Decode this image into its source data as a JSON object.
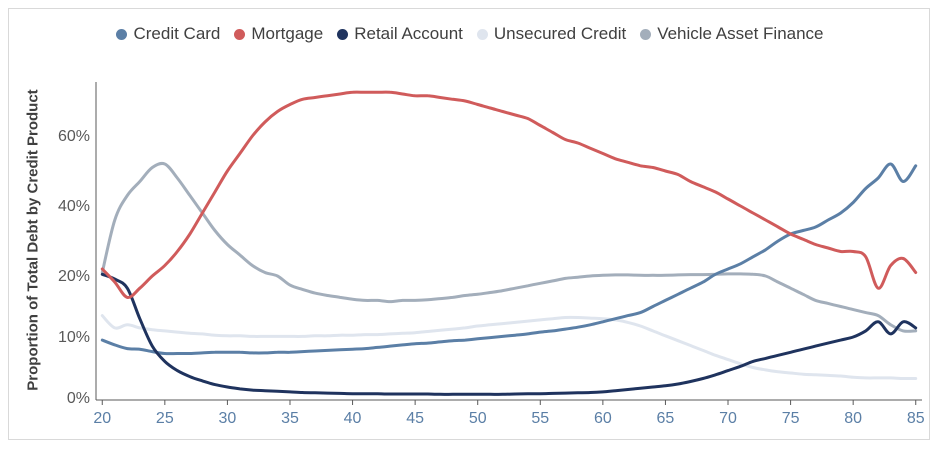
{
  "chart_data": {
    "type": "line",
    "ylabel": "Proportion of Total Debt by Credit Product",
    "xlabel": "",
    "xlim": [
      19.5,
      85.5
    ],
    "x_ticks": [
      20,
      25,
      30,
      35,
      40,
      45,
      50,
      55,
      60,
      65,
      70,
      75,
      80,
      85
    ],
    "y_ticks": [
      {
        "value": 0,
        "label": "0%"
      },
      {
        "value": 10,
        "label": "10%"
      },
      {
        "value": 20,
        "label": "20%"
      },
      {
        "value": 40,
        "label": "40%"
      },
      {
        "value": 60,
        "label": "60%"
      }
    ],
    "legend_position": "top",
    "grid": false,
    "x": [
      20,
      21,
      22,
      23,
      24,
      25,
      26,
      27,
      28,
      29,
      30,
      31,
      32,
      33,
      34,
      35,
      36,
      37,
      38,
      39,
      40,
      41,
      42,
      43,
      44,
      45,
      46,
      47,
      48,
      49,
      50,
      51,
      52,
      53,
      54,
      55,
      56,
      57,
      58,
      59,
      60,
      61,
      62,
      63,
      64,
      65,
      66,
      67,
      68,
      69,
      70,
      71,
      72,
      73,
      74,
      75,
      76,
      77,
      78,
      79,
      80,
      81,
      82,
      83,
      84,
      85
    ],
    "series": [
      {
        "name": "Credit Card",
        "color": "#5b7fa6",
        "values": [
          9.5,
          8.7,
          8.1,
          8,
          7.6,
          7.3,
          7.3,
          7.3,
          7.4,
          7.5,
          7.5,
          7.5,
          7.4,
          7.4,
          7.5,
          7.5,
          7.6,
          7.7,
          7.8,
          7.9,
          8.0,
          8.1,
          8.3,
          8.5,
          8.7,
          8.9,
          9.0,
          9.2,
          9.4,
          9.5,
          9.7,
          9.9,
          10.1,
          10.3,
          10.5,
          10.8,
          11.0,
          11.3,
          11.6,
          12,
          12.5,
          13,
          13.5,
          14,
          15,
          16,
          17,
          18,
          19,
          20.5,
          22,
          23.5,
          25.5,
          27.5,
          30,
          32,
          33,
          34,
          36,
          38,
          41,
          45,
          48,
          52,
          47,
          51.5
        ]
      },
      {
        "name": "Mortgage",
        "color": "#d05b5b",
        "values": [
          22,
          19,
          16.5,
          18,
          20,
          23,
          27,
          32,
          38,
          44,
          50,
          55,
          60,
          64,
          67,
          69,
          70.5,
          71,
          71.5,
          72,
          72.5,
          72.5,
          72.5,
          72.5,
          72,
          71.5,
          71.5,
          71,
          70.5,
          70,
          69,
          68,
          67,
          66,
          65,
          63,
          61,
          59,
          58,
          56.5,
          55,
          53.5,
          52.5,
          51.5,
          51,
          50,
          49,
          47,
          45.5,
          44,
          42,
          40,
          38,
          36,
          34,
          32,
          30.5,
          29,
          28,
          27,
          27,
          25.5,
          18,
          23,
          25,
          21
        ]
      },
      {
        "name": "Retail Account",
        "color": "#1f335e",
        "values": [
          20.5,
          19.5,
          18,
          13,
          8.5,
          6,
          4.5,
          3.5,
          2.8,
          2.2,
          1.8,
          1.5,
          1.3,
          1.2,
          1.1,
          1.0,
          0.9,
          0.85,
          0.8,
          0.75,
          0.7,
          0.7,
          0.7,
          0.65,
          0.65,
          0.65,
          0.65,
          0.6,
          0.6,
          0.6,
          0.6,
          0.6,
          0.6,
          0.65,
          0.7,
          0.7,
          0.75,
          0.8,
          0.85,
          0.9,
          1.0,
          1.2,
          1.4,
          1.6,
          1.8,
          2.0,
          2.3,
          2.7,
          3.2,
          3.8,
          4.5,
          5.2,
          6,
          6.5,
          7,
          7.5,
          8,
          8.5,
          9,
          9.5,
          10,
          11,
          12.5,
          10.5,
          12.5,
          11.5
        ]
      },
      {
        "name": "Unsecured Credit",
        "color": "#dfe5ee",
        "values": [
          13.5,
          11.5,
          12,
          11.5,
          11.2,
          11,
          10.8,
          10.6,
          10.5,
          10.3,
          10.2,
          10.2,
          10.1,
          10.1,
          10.1,
          10.1,
          10.1,
          10.2,
          10.2,
          10.3,
          10.3,
          10.4,
          10.4,
          10.5,
          10.6,
          10.7,
          10.9,
          11.1,
          11.3,
          11.5,
          11.8,
          12,
          12.2,
          12.4,
          12.6,
          12.8,
          13,
          13.2,
          13.2,
          13.1,
          13,
          12.8,
          12.4,
          11.8,
          11,
          10.2,
          9.4,
          8.6,
          7.8,
          7,
          6.3,
          5.6,
          5.0,
          4.6,
          4.3,
          4.1,
          3.9,
          3.8,
          3.7,
          3.6,
          3.4,
          3.3,
          3.3,
          3.3,
          3.2,
          3.2
        ]
      },
      {
        "name": "Vehicle Asset Finance",
        "color": "#a3aebb",
        "values": [
          21,
          36,
          43,
          47,
          51,
          52,
          48,
          43,
          38,
          33,
          29,
          26,
          23,
          21,
          20,
          18.5,
          17.8,
          17.2,
          16.8,
          16.5,
          16.2,
          16,
          16,
          15.8,
          16,
          16,
          16.1,
          16.3,
          16.5,
          16.8,
          17,
          17.3,
          17.6,
          18,
          18.4,
          18.8,
          19.2,
          19.6,
          19.8,
          20,
          20.2,
          20.3,
          20.3,
          20.2,
          20.2,
          20.2,
          20.3,
          20.4,
          20.4,
          20.5,
          20.6,
          20.6,
          20.5,
          20,
          19,
          18,
          17,
          16,
          15.5,
          15,
          14.5,
          14,
          13.5,
          12,
          11,
          11
        ]
      }
    ]
  }
}
